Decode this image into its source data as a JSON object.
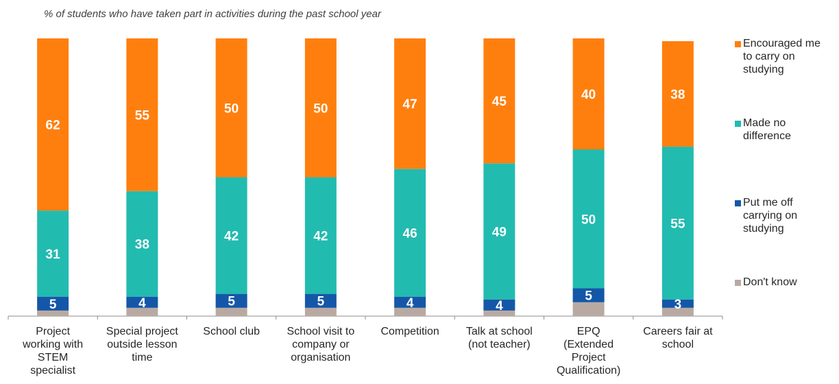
{
  "chart_data": {
    "type": "bar",
    "stacked": true,
    "title": "% of students who have taken part in activities during the past school year",
    "categories": [
      "Project working with STEM specialist",
      "Special project outside lesson time",
      "School club",
      "School visit to company or organisation",
      "Competition",
      "Talk at school (not teacher)",
      "EPQ (Extended Project Qualification)",
      "Careers fair at school"
    ],
    "category_lines": [
      [
        "Project",
        "working with",
        "STEM",
        "specialist"
      ],
      [
        "Special project",
        "outside lesson",
        "time"
      ],
      [
        "School club"
      ],
      [
        "School visit to",
        "company or",
        "organisation"
      ],
      [
        "Competition"
      ],
      [
        "Talk at school",
        "(not teacher)"
      ],
      [
        "EPQ",
        "(Extended",
        "Project",
        "Qualification)"
      ],
      [
        "Careers fair at",
        "school"
      ]
    ],
    "series": [
      {
        "name": "Don't know",
        "color": "#b8aaa2",
        "values": [
          2,
          3,
          3,
          3,
          3,
          2,
          5,
          3
        ]
      },
      {
        "name": "Put me off carrying on studying",
        "color": "#1457a8",
        "values": [
          5,
          4,
          5,
          5,
          4,
          4,
          5,
          3
        ]
      },
      {
        "name": "Made no difference",
        "color": "#22bbb0",
        "values": [
          31,
          38,
          42,
          42,
          46,
          49,
          50,
          55
        ]
      },
      {
        "name": "Encouraged me to carry on studying",
        "color": "#ff7f0e",
        "values": [
          62,
          55,
          50,
          50,
          47,
          45,
          40,
          38
        ]
      }
    ],
    "data_labels": [
      [
        "",
        "",
        "",
        "",
        "",
        "",
        "",
        ""
      ],
      [
        "5",
        "4",
        "5",
        "5",
        "4",
        "4",
        "5",
        "3"
      ],
      [
        "31",
        "38",
        "42",
        "42",
        "46",
        "49",
        "50",
        "55"
      ],
      [
        "62",
        "55",
        "50",
        "50",
        "47",
        "45",
        "40",
        "38"
      ]
    ],
    "legend": {
      "position": "right",
      "order": [
        3,
        2,
        1,
        0
      ],
      "lines": [
        [
          "Encouraged me",
          "to carry on",
          "studying"
        ],
        [
          "Made no",
          "difference"
        ],
        [
          "Put me off",
          "carrying on",
          "studying"
        ],
        [
          "Don't know"
        ]
      ]
    },
    "ylim": [
      0,
      100
    ],
    "grid": false
  }
}
